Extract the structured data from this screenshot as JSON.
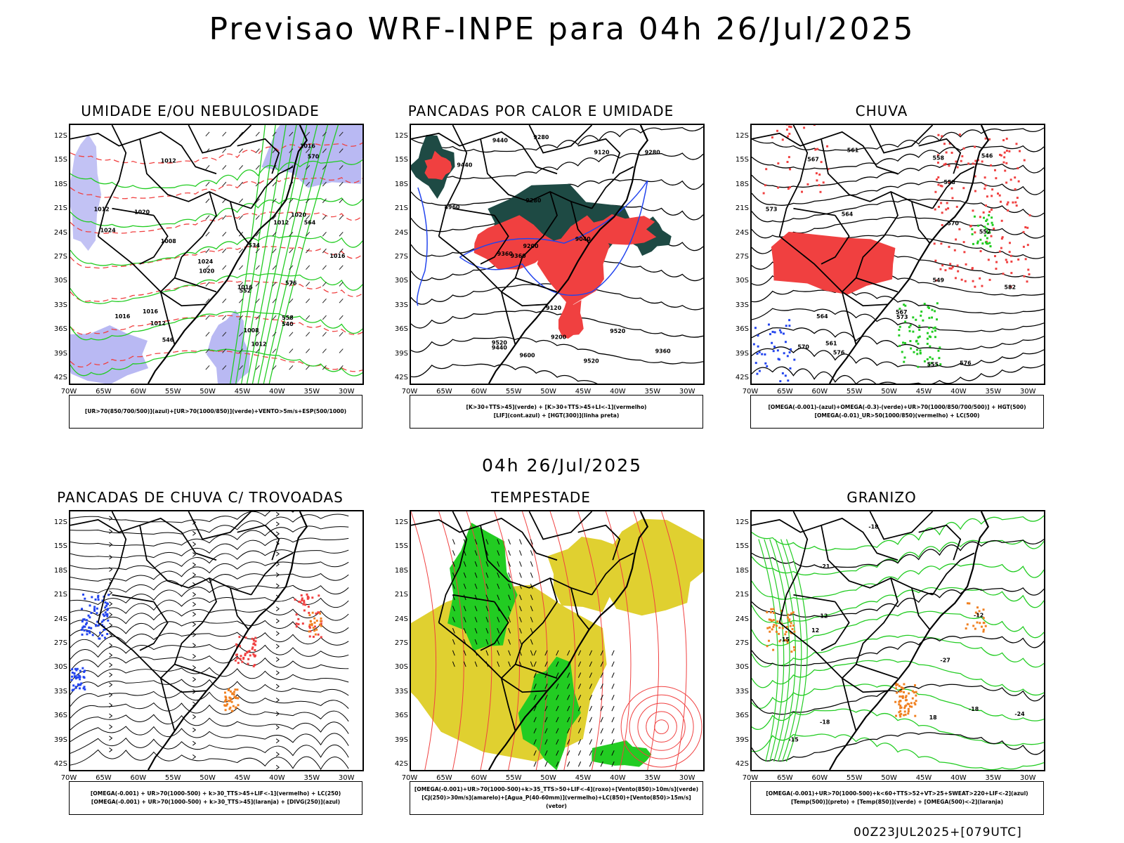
{
  "main_title": "Previsao WRF-INPE  para 04h 26/Jul/2025",
  "mid_date": "04h 26/Jul/2025",
  "footer": "00Z23JUL2025+[079UTC]",
  "lat_ticks": [
    "12S",
    "15S",
    "18S",
    "21S",
    "24S",
    "27S",
    "30S",
    "33S",
    "36S",
    "39S",
    "42S"
  ],
  "lon_ticks": [
    "70W",
    "65W",
    "60W",
    "55W",
    "50W",
    "45W",
    "40W",
    "35W",
    "30W"
  ],
  "colors": {
    "red": "#f04040",
    "green": "#22cc22",
    "blue": "#2244ee",
    "lavender": "#a8a8f0",
    "darkgreen": "#1e4a44",
    "yellow": "#e0d030",
    "orange": "#f08020",
    "black": "#000000"
  },
  "panels": [
    {
      "title": "UMIDADE E/OU NEBULOSIDADE",
      "legend": [
        "[UR>70(850/700/500)](azul)+[UR>70(1000/850)](verde)+VENTO>5m/s+ESP(500/1000)"
      ],
      "contour_labels": [
        "1012",
        "1012",
        "1016",
        "1020",
        "1020",
        "1008",
        "1016",
        "1008",
        "1020",
        "1012",
        "1016",
        "1012",
        "1024",
        "1016",
        "1012",
        "1016",
        "1024",
        "570",
        "576",
        "564",
        "558",
        "552",
        "546",
        "540",
        "534"
      ]
    },
    {
      "title": "PANCADAS POR CALOR E UMIDADE",
      "legend": [
        "[K>30+TTS>45](verde) + [K>30+TTS>45+LI<-1](vermelho)",
        "[LIF](cont.azul) + [HGT(300)](linha preta)"
      ],
      "contour_labels": [
        "9600",
        "9520",
        "9520",
        "9520",
        "9440",
        "9440",
        "9360",
        "9360",
        "9280",
        "9280",
        "9280",
        "9200",
        "9200",
        "9120",
        "9120",
        "9040",
        "8960",
        "9440",
        "9360"
      ]
    },
    {
      "title": "CHUVA",
      "legend": [
        "[OMEGA(-0.001)-(azul)+OMEGA(-0.3)-(verde)+UR>70(1000/850/700/500)] + HGT(500)",
        "[OMEGA(-0.01)_UR>50(1000/850)(vermelho) + LC(500)"
      ],
      "contour_labels": [
        "582",
        "576",
        "573",
        "570",
        "567",
        "564",
        "561",
        "558",
        "555",
        "552",
        "549",
        "546",
        "573",
        "570",
        "576",
        "567",
        "564",
        "561",
        "558"
      ]
    },
    {
      "title": "PANCADAS DE CHUVA C/ TROVOADAS",
      "legend": [
        "[OMEGA(-0.001) + UR>70(1000-500) + k>30_TTS>45+LIF<-1](vermelho) + LC(250)",
        "[OMEGA(-0.001) + UR>70(1000-500) + k>30_TTS>45](laranja) + [DIVG(250)](azul)"
      ],
      "contour_labels": []
    },
    {
      "title": "TEMPESTADE",
      "legend": [
        "[OMEGA(-0.001)+UR>70(1000-500)+k>35_TTS>50+LIF<-4](roxo)+[Vento(850)>10m/s](verde)",
        "[CJ(250)>30m/s](amarelo)+[Agua_P(40-60mm)](vermelho)+LC(850)+[Vento(850)>15m/s](vetor)"
      ],
      "contour_labels": []
    },
    {
      "title": "GRANIZO",
      "legend": [
        "[OMEGA(-0.001)+UR>70(1000-500)+k<60+TTS>52+VT>25+SWEAT>220+LIF<-2](azul)",
        "[Temp(500)](preto) + [Temp(850)](verde) + [OMEGA(500)<-2](laranja)"
      ],
      "contour_labels": [
        "-12",
        "-18",
        "-18",
        "-15",
        "-21",
        "-24",
        "-27",
        "-15",
        "-12",
        "-18",
        "12",
        "18"
      ]
    }
  ]
}
